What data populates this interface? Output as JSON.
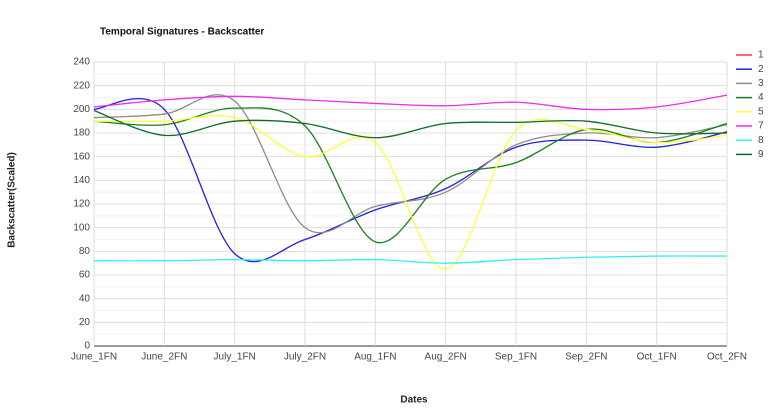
{
  "chart_data": {
    "type": "line",
    "title": "Temporal Signatures - Backscatter",
    "x_label": "Dates",
    "y_label": "Backscatter(Scaled)",
    "categories": [
      "June_1FN",
      "June_2FN",
      "July_1FN",
      "July_2FN",
      "Aug_1FN",
      "Aug_2FN",
      "Sep_1FN",
      "Sep_2FN",
      "Oct_1FN",
      "Oct_2FN"
    ],
    "series": [
      {
        "name": "1",
        "color": "#ff3b3b",
        "values": [
          null,
          null,
          null,
          null,
          null,
          null,
          null,
          null,
          null,
          null
        ]
      },
      {
        "name": "2",
        "color": "#2020e0",
        "values": [
          200,
          200,
          78,
          90,
          115,
          133,
          168,
          174,
          168,
          181
        ]
      },
      {
        "name": "3",
        "color": "#8c8c8c",
        "values": [
          193,
          196,
          207,
          100,
          118,
          130,
          170,
          180,
          176,
          187
        ]
      },
      {
        "name": "4",
        "color": "#1a7f1a",
        "values": [
          190,
          187,
          201,
          186,
          88,
          141,
          155,
          183,
          172,
          188
        ]
      },
      {
        "name": "5",
        "color": "#ffff33",
        "values": [
          190,
          190,
          193,
          160,
          172,
          65,
          182,
          183,
          172,
          178
        ]
      },
      {
        "name": "7",
        "color": "#ee2cee",
        "values": [
          202,
          208,
          211,
          208,
          205,
          203,
          206,
          200,
          202,
          212
        ]
      },
      {
        "name": "8",
        "color": "#33f0f0",
        "values": [
          72,
          72,
          73,
          72,
          73,
          70,
          73,
          75,
          76,
          76
        ]
      },
      {
        "name": "9",
        "color": "#0d6b2a",
        "values": [
          199,
          178,
          190,
          188,
          176,
          188,
          189,
          190,
          180,
          180
        ]
      }
    ],
    "ylim": [
      0,
      240
    ],
    "yticks": [
      0,
      20,
      40,
      60,
      80,
      100,
      120,
      140,
      160,
      180,
      200,
      220,
      240
    ],
    "grid": true,
    "legend": "right"
  }
}
